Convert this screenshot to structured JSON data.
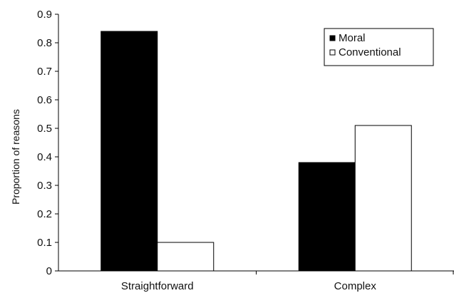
{
  "chart_data": {
    "type": "bar",
    "categories": [
      "Straightforward",
      "Complex"
    ],
    "series": [
      {
        "name": "Moral",
        "values": [
          0.84,
          0.38
        ]
      },
      {
        "name": "Conventional",
        "values": [
          0.1,
          0.51
        ]
      }
    ],
    "title": "",
    "xlabel": "",
    "ylabel": "Proportion of reasons",
    "ylim": [
      0,
      0.9
    ],
    "yticks": [
      "0",
      "0.1",
      "0.2",
      "0.3",
      "0.4",
      "0.5",
      "0.6",
      "0.7",
      "0.8",
      "0.9"
    ],
    "grid": false,
    "legend_position": "top-right",
    "colors": {
      "Moral": "#000000",
      "Conventional": "#ffffff"
    }
  }
}
